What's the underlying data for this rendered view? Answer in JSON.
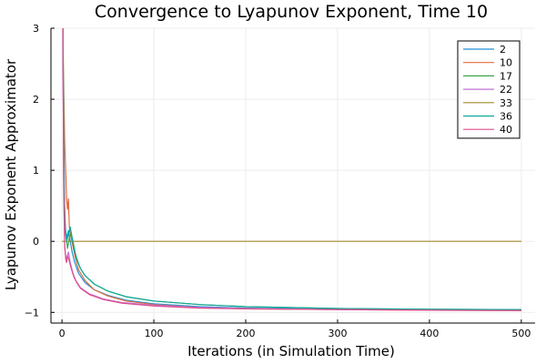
{
  "chart_data": {
    "type": "line",
    "title": "Convergence to Lyapunov Exponent, Time 10",
    "xlabel": "Iterations (in Simulation Time)",
    "ylabel": "Lyapunov Exponent Approximator",
    "xlim": [
      -12,
      515
    ],
    "ylim": [
      -1.15,
      3.0
    ],
    "xticks": [
      0,
      100,
      200,
      300,
      400,
      500
    ],
    "yticks": [
      -1,
      0,
      1,
      2,
      3
    ],
    "grid": true,
    "legend_position": "top-right",
    "series": [
      {
        "name": "2",
        "color": "#1f8fd8",
        "x": [
          1,
          2,
          3,
          5,
          7,
          9,
          11,
          14,
          18,
          25,
          35,
          50,
          70,
          100,
          150,
          200,
          300,
          400,
          500
        ],
        "y": [
          3.0,
          1.2,
          0.2,
          0.05,
          0.15,
          0.0,
          -0.15,
          -0.3,
          -0.45,
          -0.58,
          -0.68,
          -0.76,
          -0.83,
          -0.88,
          -0.92,
          -0.94,
          -0.955,
          -0.96,
          -0.965
        ]
      },
      {
        "name": "10",
        "color": "#e26d3c",
        "x": [
          1,
          2,
          3,
          4,
          5,
          6,
          7,
          8,
          10,
          14,
          18,
          25,
          35,
          50,
          70,
          100,
          150,
          200,
          300,
          400,
          500
        ],
        "y": [
          3.0,
          2.1,
          1.4,
          1.0,
          0.6,
          0.45,
          0.6,
          0.2,
          0.05,
          -0.2,
          -0.4,
          -0.55,
          -0.68,
          -0.77,
          -0.84,
          -0.89,
          -0.93,
          -0.95,
          -0.96,
          -0.97,
          -0.975
        ]
      },
      {
        "name": "17",
        "color": "#3ea64b",
        "x": [
          1,
          2,
          4,
          6,
          8,
          10,
          12,
          15,
          20,
          25,
          35,
          50,
          70,
          100,
          150,
          200,
          300,
          400,
          500
        ],
        "y": [
          3.0,
          0.8,
          0.1,
          -0.1,
          0.05,
          0.12,
          0.0,
          -0.2,
          -0.38,
          -0.48,
          -0.6,
          -0.7,
          -0.78,
          -0.84,
          -0.89,
          -0.92,
          -0.945,
          -0.955,
          -0.96
        ]
      },
      {
        "name": "22",
        "color": "#c270d6",
        "x": [
          1,
          2,
          3,
          4,
          5,
          7,
          9,
          12,
          15,
          20,
          30,
          45,
          65,
          100,
          150,
          200,
          300,
          400,
          500
        ],
        "y": [
          3.0,
          0.6,
          -0.1,
          -0.2,
          -0.25,
          -0.15,
          -0.3,
          -0.45,
          -0.55,
          -0.65,
          -0.74,
          -0.81,
          -0.86,
          -0.9,
          -0.93,
          -0.945,
          -0.96,
          -0.965,
          -0.97
        ]
      },
      {
        "name": "33",
        "color": "#9f8a2a",
        "x": [
          0,
          500
        ],
        "y": [
          0,
          0
        ]
      },
      {
        "name": "36",
        "color": "#0fa69b",
        "x": [
          1,
          2,
          3,
          5,
          7,
          9,
          11,
          13,
          16,
          20,
          25,
          35,
          50,
          70,
          100,
          150,
          200,
          300,
          400,
          500
        ],
        "y": [
          3.0,
          1.5,
          0.3,
          0.0,
          0.1,
          0.2,
          0.05,
          -0.1,
          -0.25,
          -0.38,
          -0.48,
          -0.6,
          -0.7,
          -0.78,
          -0.84,
          -0.89,
          -0.92,
          -0.945,
          -0.955,
          -0.96
        ]
      },
      {
        "name": "40",
        "color": "#df4f8c",
        "x": [
          1,
          2,
          3,
          4,
          5,
          6,
          8,
          10,
          13,
          16,
          20,
          30,
          45,
          65,
          100,
          150,
          200,
          300,
          400,
          500
        ],
        "y": [
          3.0,
          0.7,
          -0.05,
          -0.25,
          -0.3,
          -0.2,
          -0.28,
          -0.38,
          -0.5,
          -0.58,
          -0.66,
          -0.75,
          -0.82,
          -0.87,
          -0.91,
          -0.94,
          -0.95,
          -0.96,
          -0.97,
          -0.975
        ]
      }
    ]
  }
}
